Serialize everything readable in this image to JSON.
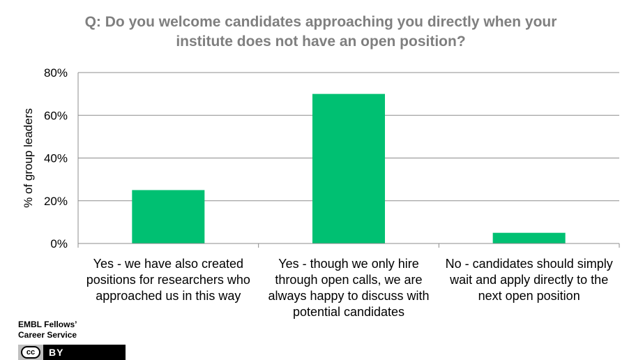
{
  "chart_data": {
    "type": "bar",
    "title_lines": [
      "Q: Do you welcome candidates approaching  you directly when your",
      "institute does not have an open position?"
    ],
    "ylabel": "% of group leaders",
    "xlabel": "",
    "ylim": [
      0,
      80
    ],
    "yticks": [
      0,
      20,
      40,
      60,
      80
    ],
    "ytick_labels": [
      "0%",
      "20%",
      "40%",
      "60%",
      "80%"
    ],
    "categories": [
      [
        "Yes - we have also created",
        "positions for researchers who",
        "approached us in this way"
      ],
      [
        "Yes - though we only hire",
        "through open calls, we are",
        "always happy to discuss with",
        "potential candidates"
      ],
      [
        "No - candidates should simply",
        "wait and apply directly to the",
        "next open position"
      ]
    ],
    "values": [
      25,
      70,
      5
    ],
    "grid": true,
    "legend": "none",
    "bar_color": "#00c072"
  },
  "credit": {
    "line1": "EMBL Fellows’",
    "line2": "Career Service"
  },
  "license": {
    "cc_text": "cc",
    "by_text": "BY"
  }
}
